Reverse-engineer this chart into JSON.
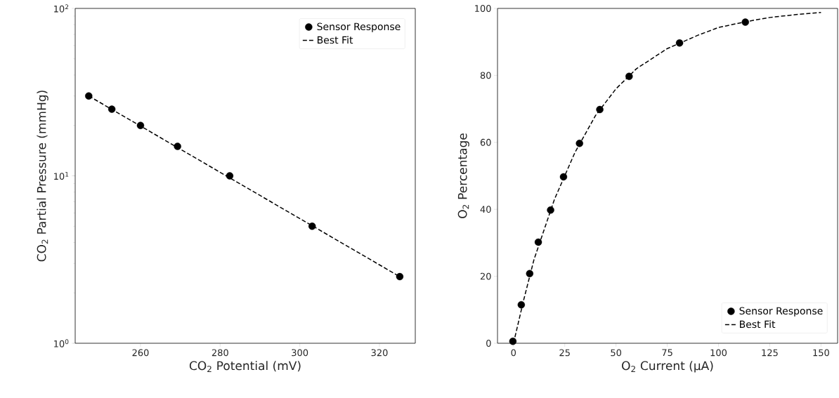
{
  "chart_data": [
    {
      "type": "scatter",
      "xlabel": "CO$_{2}$ Potential (mV)",
      "ylabel": "CO$_{2}$ Partial Pressure (mmHg)",
      "log": "y",
      "xlim": [
        243.6,
        329.0
      ],
      "ylim": [
        1,
        100
      ],
      "xticks": [
        260,
        280,
        300,
        320
      ],
      "yticks": [
        {
          "value": 1,
          "label": "10$^{0}$"
        },
        {
          "value": 10,
          "label": "10$^{1}$"
        },
        {
          "value": 100,
          "label": "10$^{2}$"
        }
      ],
      "legend": "top right",
      "grid": false,
      "series": [
        {
          "name": "Sensor Response",
          "marker": "circle",
          "color": "#000000",
          "x": [
            247.0,
            252.8,
            260.0,
            269.3,
            282.4,
            303.1,
            325.1
          ],
          "values": [
            30,
            25,
            20,
            15,
            10,
            5,
            2.5
          ]
        },
        {
          "name": "Best Fit",
          "type": "line",
          "marker": "none",
          "line_style": "dashed",
          "color": "#000000",
          "x": [
            247.0,
            325.1
          ],
          "values": [
            30,
            2.5
          ]
        }
      ]
    },
    {
      "type": "scatter",
      "xlabel": "O$_{2}$ Current (μA)",
      "ylabel": "O$_{2}$ Percentage",
      "xlim": [
        -7.8,
        158.1
      ],
      "ylim": [
        0,
        100
      ],
      "xticks": [
        0,
        25,
        50,
        75,
        100,
        125,
        150
      ],
      "yticks": [
        0,
        20,
        40,
        60,
        80,
        100
      ],
      "legend": "bottom right",
      "grid": false,
      "series": [
        {
          "name": "Sensor Response",
          "marker": "circle",
          "color": "#000000",
          "x": [
            -0.3,
            3.8,
            7.9,
            12.1,
            18.1,
            24.4,
            32.2,
            42.1,
            56.4,
            81.0,
            113.1
          ],
          "values": [
            0.6,
            11.5,
            20.8,
            30.2,
            39.8,
            49.7,
            59.7,
            69.8,
            79.7,
            89.7,
            95.9
          ]
        },
        {
          "name": "Best Fit",
          "type": "line",
          "marker": "none",
          "line_style": "dashed",
          "color": "#000000",
          "x": [
            0,
            5,
            10,
            20,
            30,
            40,
            50,
            60,
            75,
            90,
            100,
            113,
            125,
            137,
            150
          ],
          "values": [
            0,
            13,
            25,
            43,
            57,
            68,
            76,
            82,
            88,
            92,
            94.3,
            96,
            97.3,
            98.1,
            98.8
          ]
        }
      ]
    }
  ]
}
